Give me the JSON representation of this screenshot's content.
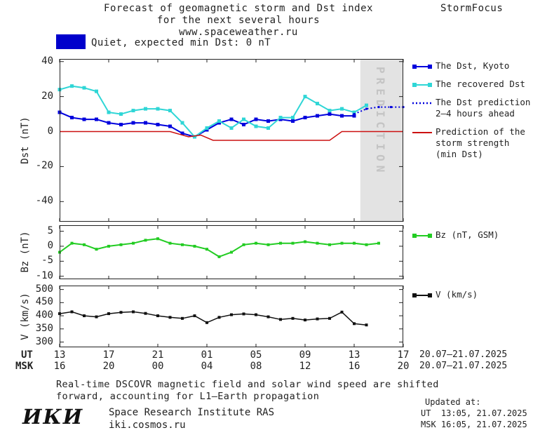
{
  "header": {
    "title_line1": "Forecast of geomagnetic storm and Dst index",
    "title_line2": "for the next several hours",
    "title_line3": "www.spaceweather.ru",
    "brand": "StormFocus"
  },
  "status": {
    "label": "Quiet, expected min Dst: 0 nT",
    "color": "#0000cc"
  },
  "legends": {
    "dst": [
      {
        "style": "squares",
        "color": "#0000dd",
        "lines": [
          "The Dst, Kyoto"
        ]
      },
      {
        "style": "squares",
        "color": "#2fd6d6",
        "lines": [
          "The recovered Dst"
        ]
      },
      {
        "style": "dotted",
        "color": "#0000dd",
        "lines": [
          "The Dst prediction",
          "2–4 hours ahead"
        ]
      },
      {
        "style": "line",
        "color": "#cc1111",
        "lines": [
          "Prediction of the",
          "storm strength",
          "(min Dst)"
        ]
      }
    ],
    "bz": [
      {
        "style": "squares",
        "color": "#22cc22",
        "lines": [
          "Bz (nT, GSM)"
        ]
      }
    ],
    "v": [
      {
        "style": "squares",
        "color": "#111111",
        "lines": [
          "V (km/s)"
        ]
      }
    ]
  },
  "xaxis": {
    "ut_row_label": "UT",
    "msk_row_label": "MSK",
    "tick_hours": [
      13,
      17,
      21,
      25,
      29,
      33,
      37,
      41
    ],
    "ut_labels": [
      "13",
      "17",
      "21",
      "01",
      "05",
      "09",
      "13",
      "17"
    ],
    "msk_labels": [
      "16",
      "20",
      "00",
      "04",
      "08",
      "12",
      "16",
      "20"
    ],
    "date_range_ut": "20.07–21.07.2025",
    "date_range_msk": "20.07–21.07.2025"
  },
  "chart_data": [
    {
      "type": "line",
      "title": "Dst index: observed, recovered and predicted",
      "ylabel": "Dst (nT)",
      "xlim": [
        13,
        41
      ],
      "ylim": [
        -51.5,
        41.5
      ],
      "y_ticks": [
        40,
        20,
        0,
        -20,
        -40
      ],
      "prediction_band_start": 37.5,
      "prediction_band_label": "PREDICTION",
      "series": [
        {
          "name": "The Dst, Kyoto",
          "color": "#0000dd",
          "marker": "square",
          "marker_size": 5,
          "line": "solid",
          "width": 2,
          "x": [
            13,
            14,
            15,
            16,
            17,
            18,
            19,
            20,
            21,
            22,
            23,
            24,
            25,
            26,
            27,
            28,
            29,
            30,
            31,
            32,
            33,
            34,
            35,
            36,
            37
          ],
          "values": [
            11,
            8,
            7,
            7,
            5,
            4,
            5,
            5,
            4,
            3,
            -1,
            -3,
            1,
            5,
            7,
            4,
            7,
            6,
            7,
            6,
            8,
            9,
            10,
            9,
            9
          ]
        },
        {
          "name": "The recovered Dst",
          "color": "#2fd6d6",
          "marker": "square",
          "marker_size": 5,
          "line": "solid",
          "width": 2,
          "x": [
            13,
            14,
            15,
            16,
            17,
            18,
            19,
            20,
            21,
            22,
            23,
            24,
            25,
            26,
            27,
            28,
            29,
            30,
            31,
            32,
            33,
            34,
            35,
            36,
            37,
            38
          ],
          "values": [
            24,
            26,
            25,
            23,
            11,
            10,
            12,
            13,
            13,
            12,
            5,
            -3,
            2,
            6,
            2,
            7,
            3,
            2,
            8,
            8,
            20,
            16,
            12,
            13,
            11,
            15
          ]
        },
        {
          "name": "The Dst prediction 2–4 hours ahead",
          "color": "#0000dd",
          "marker": "square",
          "marker_size": 3,
          "line": "dotted",
          "width": 2,
          "x": [
            37,
            38,
            39,
            40,
            41
          ],
          "values": [
            10,
            13,
            14,
            14,
            14
          ]
        },
        {
          "name": "Prediction of the storm strength (min Dst)",
          "color": "#cc1111",
          "marker": "none",
          "line": "solid",
          "width": 1.5,
          "x": [
            13,
            22,
            23.5,
            24.5,
            25.5,
            35,
            36,
            41
          ],
          "values": [
            0,
            0,
            -3,
            -2,
            -5,
            -5,
            0,
            0
          ]
        }
      ]
    },
    {
      "type": "line",
      "title": "Bz component of interplanetary magnetic field",
      "ylabel": "Bz (nT)",
      "xlim": [
        13,
        41
      ],
      "ylim": [
        -11,
        7
      ],
      "y_ticks": [
        5,
        0,
        -5,
        -10
      ],
      "series": [
        {
          "name": "Bz (nT, GSM)",
          "color": "#22cc22",
          "marker": "square",
          "marker_size": 4,
          "line": "solid",
          "width": 2,
          "x": [
            13,
            14,
            15,
            16,
            17,
            18,
            19,
            20,
            21,
            22,
            23,
            24,
            25,
            26,
            27,
            28,
            29,
            30,
            31,
            32,
            33,
            34,
            35,
            36,
            37,
            38,
            39
          ],
          "values": [
            -2,
            1,
            0.5,
            -1,
            0,
            0.5,
            1,
            2,
            2.5,
            1,
            0.5,
            0,
            -1,
            -3.5,
            -2,
            0.5,
            1,
            0.5,
            1,
            1,
            1.5,
            1,
            0.5,
            1,
            1,
            0.5,
            1
          ]
        }
      ]
    },
    {
      "type": "line",
      "title": "Solar wind speed",
      "ylabel": "V (km/s)",
      "xlim": [
        13,
        41
      ],
      "ylim": [
        280,
        515
      ],
      "y_ticks": [
        500,
        450,
        400,
        350,
        300
      ],
      "series": [
        {
          "name": "V (km/s)",
          "color": "#111111",
          "marker": "square",
          "marker_size": 4,
          "line": "solid",
          "width": 1.5,
          "x": [
            13,
            14,
            15,
            16,
            17,
            18,
            19,
            20,
            21,
            22,
            23,
            24,
            25,
            26,
            27,
            28,
            29,
            30,
            31,
            32,
            33,
            34,
            35,
            36,
            37,
            38
          ],
          "values": [
            408,
            415,
            400,
            396,
            408,
            413,
            415,
            409,
            400,
            394,
            390,
            400,
            374,
            394,
            404,
            407,
            404,
            396,
            386,
            390,
            384,
            388,
            390,
            414,
            370,
            365
          ]
        }
      ]
    }
  ],
  "footer": {
    "note_line1": "Real-time DSCOVR magnetic field and solar wind speed are shifted",
    "note_line2": "forward, accounting for L1–Earth propagation",
    "logo": "ИКИ",
    "institute": "Space Research Institute RAS",
    "website": "iki.cosmos.ru",
    "updated_label": "Updated at:",
    "updated_ut": "UT  13:05, 21.07.2025",
    "updated_msk": "MSK 16:05, 21.07.2025"
  }
}
